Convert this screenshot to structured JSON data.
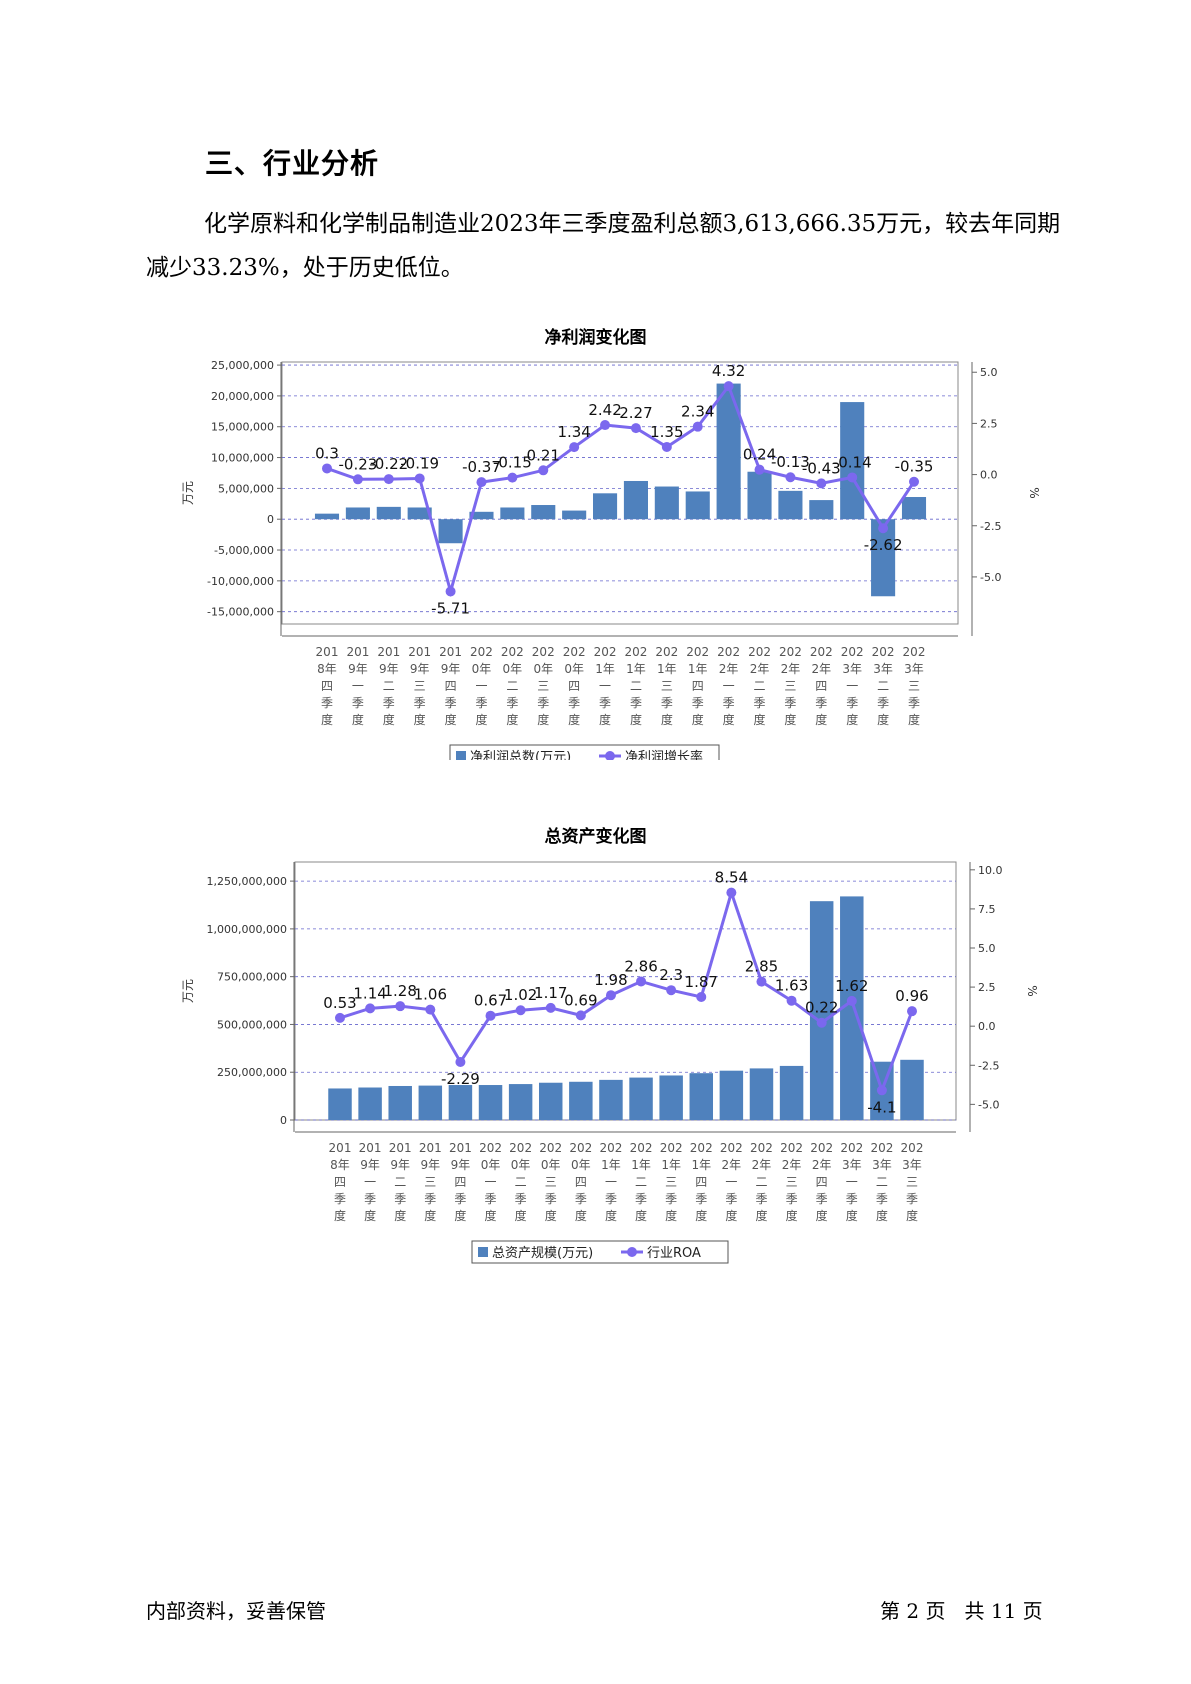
{
  "section": {
    "title": "三、行业分析"
  },
  "paragraph": {
    "text": "化学原料和化学制品制造业2023年三季度盈利总额3,613,666.35万元，较去年同期减少33.23%，处于历史低位。"
  },
  "quarters": [
    "2018年四季度",
    "2019年一季度",
    "2019年二季度",
    "2019年三季度",
    "2019年四季度",
    "2020年一季度",
    "2020年二季度",
    "2020年三季度",
    "2020年四季度",
    "2021年一季度",
    "2021年二季度",
    "2021年三季度",
    "2021年四季度",
    "2022年一季度",
    "2022年二季度",
    "2022年三季度",
    "2022年四季度",
    "2023年一季度",
    "2023年二季度",
    "2023年三季度"
  ],
  "chart_data": [
    {
      "type": "bar",
      "title": "净利润变化图",
      "ylabel": "万元",
      "y2label": "%",
      "ylim": [
        -17000000,
        25500000
      ],
      "yticks": [
        -15000000,
        -10000000,
        -5000000,
        0,
        5000000,
        10000000,
        15000000,
        20000000,
        25000000
      ],
      "ytick_labels": [
        "-15,000,000",
        "-10,000,000",
        "-5,000,000",
        "0",
        "5,000,000",
        "10,000,000",
        "15,000,000",
        "20,000,000",
        "25,000,000"
      ],
      "y2lim": [
        -7.3,
        5.5
      ],
      "y2ticks": [
        -5.0,
        -2.5,
        0.0,
        2.5,
        5.0
      ],
      "y2tick_labels": [
        "-5.0",
        "-2.5",
        "0.0",
        "2.5",
        "5.0"
      ],
      "grid": true,
      "legend_position": "bottom",
      "series": [
        {
          "name": "净利润总数(万元)",
          "kind": "bar",
          "color": "#4f81bd",
          "values": [
            900000,
            1900000,
            2000000,
            1900000,
            -3900000,
            1200000,
            1900000,
            2300000,
            1400000,
            4200000,
            6200000,
            5300000,
            4500000,
            22000000,
            7700000,
            4600000,
            3100000,
            19000000,
            -12500000,
            3600000
          ]
        },
        {
          "name": "净利润增长率",
          "kind": "line",
          "color": "#7b68ee",
          "axis": "right",
          "values": [
            0.3,
            -0.23,
            -0.22,
            -0.19,
            -5.71,
            -0.37,
            -0.15,
            0.21,
            1.34,
            2.42,
            2.27,
            1.35,
            2.34,
            4.32,
            0.24,
            -0.13,
            -0.43,
            -0.14,
            -2.62,
            -0.35
          ],
          "labels": [
            "0.3",
            "-0.23",
            "-0.22",
            "-0.19",
            "-5.71",
            "-0.37",
            "-0.15",
            "0.21",
            "1.34",
            "2.42",
            "2.27",
            "1.35",
            "2.34",
            "4.32",
            "0.24",
            "-0.13",
            "-0.43",
            "-0.14",
            "-2.62",
            "-0.35"
          ]
        }
      ]
    },
    {
      "type": "bar",
      "title": "总资产变化图",
      "ylabel": "万元",
      "y2label": "%",
      "ylim": [
        0,
        1350000000
      ],
      "yticks": [
        0,
        250000000,
        500000000,
        750000000,
        1000000000,
        1250000000
      ],
      "ytick_labels": [
        "0",
        "250,000,000",
        "500,000,000",
        "750,000,000",
        "1,000,000,000",
        "1,250,000,000"
      ],
      "y2lim": [
        -6.0,
        10.5
      ],
      "y2ticks": [
        -5.0,
        -2.5,
        0.0,
        2.5,
        5.0,
        7.5,
        10.0
      ],
      "y2tick_labels": [
        "-5.0",
        "-2.5",
        "0.0",
        "2.5",
        "5.0",
        "7.5",
        "10.0"
      ],
      "grid": true,
      "legend_position": "bottom",
      "series": [
        {
          "name": "总资产规模(万元)",
          "kind": "bar",
          "color": "#4f81bd",
          "values": [
            165000000,
            170000000,
            178000000,
            180000000,
            183000000,
            183000000,
            188000000,
            195000000,
            200000000,
            210000000,
            222000000,
            233000000,
            245000000,
            258000000,
            270000000,
            283000000,
            1145000000,
            1170000000,
            305000000,
            315000000
          ]
        },
        {
          "name": "行业ROA",
          "kind": "line",
          "color": "#7b68ee",
          "axis": "right",
          "values": [
            0.53,
            1.14,
            1.28,
            1.06,
            -2.29,
            0.67,
            1.02,
            1.17,
            0.69,
            1.98,
            2.86,
            2.3,
            1.87,
            8.54,
            2.85,
            1.63,
            0.22,
            1.62,
            -4.1,
            0.96
          ],
          "labels": [
            "0.53",
            "1.14",
            "1.28",
            "1.06",
            "-2.29",
            "0.67",
            "1.02",
            "1.17",
            "0.69",
            "1.98",
            "2.86",
            "2.3",
            "1.87",
            "8.54",
            "2.85",
            "1.63",
            "0.22",
            "1.62",
            "-4.1",
            "0.96"
          ]
        }
      ]
    }
  ],
  "footer": {
    "left": "内部资料，妥善保管",
    "right": "第 2 页   共 11 页"
  }
}
